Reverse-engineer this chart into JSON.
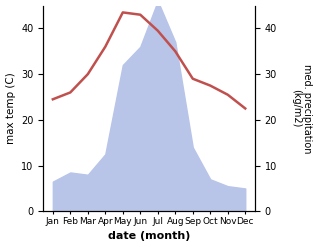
{
  "months": [
    "Jan",
    "Feb",
    "Mar",
    "Apr",
    "May",
    "Jun",
    "Jul",
    "Aug",
    "Sep",
    "Oct",
    "Nov",
    "Dec"
  ],
  "temperature": [
    24.5,
    26.0,
    30.0,
    36.0,
    43.5,
    43.0,
    39.5,
    35.0,
    29.0,
    27.5,
    25.5,
    22.5
  ],
  "precipitation": [
    6.5,
    8.5,
    8.0,
    12.5,
    32.0,
    36.0,
    46.0,
    37.0,
    14.0,
    7.0,
    5.5,
    5.0
  ],
  "temp_color": "#c0504d",
  "precip_fill_color": "#b8c4e8",
  "temp_ylim": [
    0,
    45
  ],
  "precip_ylim": [
    0,
    45
  ],
  "temp_yticks": [
    0,
    10,
    20,
    30,
    40
  ],
  "precip_yticks": [
    0,
    10,
    20,
    30,
    40
  ],
  "xlabel": "date (month)",
  "ylabel_left": "max temp (C)",
  "ylabel_right": "med. precipitation\n(kg/m2)",
  "figsize": [
    3.18,
    2.47
  ],
  "dpi": 100
}
